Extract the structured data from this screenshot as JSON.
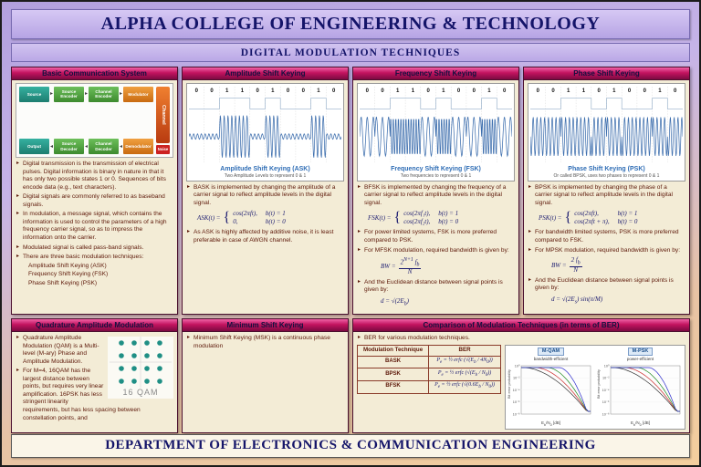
{
  "header": {
    "title": "ALPHA COLLEGE OF ENGINEERING & TECHNOLOGY",
    "subtitle": "DIGITAL MODULATION TECHNIQUES"
  },
  "footer": {
    "text": "DEPARTMENT OF ELECTRONICS & COMMUNICATION ENGINEERING"
  },
  "colors": {
    "header_lavender": "#c6b4ea",
    "panel_header_magenta": "#c2135f",
    "panel_bg_cream": "#f3ecd6",
    "body_text_maroon": "#5c1708",
    "formula_navy": "#1b1b70",
    "wave_blue": "#3e6fae",
    "constellation_teal": "#1f8f85"
  },
  "panels": {
    "basic": {
      "title": "Basic Communication System",
      "diagram": {
        "top": [
          "Source",
          "Source Encoder",
          "Channel Encoder",
          "Modulator"
        ],
        "bottom": [
          "Output",
          "Source Decoder",
          "Channel Decoder",
          "Demodulator"
        ],
        "channel": "Channel",
        "noise": "Noise"
      },
      "bullets": [
        "Digital transmission is the transmission of electrical pulses. Digital information is binary in nature in that it has only two possible states 1 or 0. Sequences of bits encode data (e.g., text characters).",
        "Digital signals are commonly referred to as baseband signals.",
        "In modulation, a message signal, which contains the information is used to control the parameters of a high frequency carrier signal, so as to impress the information onto the carrier.",
        "Modulated signal is called pass-band signals.",
        "There are three basic modulation techniques:"
      ],
      "techniques": [
        "Amplitude Shift Keying (ASK)",
        "Frequency Shift Keying (FSK)",
        "Phase Shift Keying (PSK)"
      ]
    },
    "ask": {
      "title": "Amplitude Shift Keying",
      "wave": {
        "bits": [
          0,
          0,
          1,
          1,
          0,
          1,
          0,
          0,
          1,
          0
        ],
        "type": "ask",
        "title": "Amplitude Shift Keying (ASK)",
        "subtitle": "Two Amplitude Levels to represent 0 & 1"
      },
      "bullets": [
        "BASK is implemented by changing the amplitude of a carrier signal to reflect amplitude levels in the digital signal.",
        "As ASK is highly affected by additive noise, it is least preferable in case of AWGN channel."
      ],
      "formula": {
        "lhs": "ASK(t) =",
        "c1e": "cos(2πft),",
        "c1c": "b(t) = 1",
        "c2e": "0,",
        "c2c": "b(t) = 0"
      }
    },
    "fsk": {
      "title": "Frequency Shift Keying",
      "wave": {
        "bits": [
          0,
          0,
          1,
          1,
          0,
          1,
          0,
          0,
          1,
          0
        ],
        "type": "fsk",
        "title": "Frequency Shift Keying (FSK)",
        "subtitle": "Two frequencies to represent 0 & 1"
      },
      "bullets": [
        "BFSK is implemented by changing the frequency of a carrier signal to reflect amplitude levels in the digital signal.",
        "For power limited systems, FSK is more preferred compared to PSK.",
        "For MFSK modulation, required bandwidth is given by:",
        "And the Euclidean distance between signal points is given by:"
      ],
      "formula": {
        "lhs": "FSK(t) =",
        "c1e": "cos(2πf₁t),",
        "c1c": "b(t) = 1",
        "c2e": "cos(2πf₂t),",
        "c2c": "b(t) = 0"
      },
      "bw": {
        "lhs": "BW =",
        "num": "2<sup>N+1</sup> f<sub>b</sub>",
        "den": "N"
      },
      "dist": "d = √(2E<sub>b</sub>)"
    },
    "psk": {
      "title": "Phase Shift Keying",
      "wave": {
        "bits": [
          0,
          0,
          1,
          1,
          0,
          1,
          0,
          0,
          1,
          0
        ],
        "type": "psk",
        "title": "Phase Shift Keying (PSK)",
        "subtitle": "Or called BPSK, uses two phases to represent 0 & 1"
      },
      "bullets": [
        "BPSK is implemented by changing the phase of a carrier signal to reflect amplitude levels in the digital signal.",
        "For bandwidth limited systems, PSK is more preferred compared to FSK.",
        "For MPSK modulation, required bandwidth is given by:",
        "And the Euclidean distance between signal points is given by:"
      ],
      "formula": {
        "lhs": "PSK(t) =",
        "c1e": "cos(2πft),",
        "c1c": "b(t) = 1",
        "c2e": "cos(2πft + π),",
        "c2c": "b(t) = 0"
      },
      "bw": {
        "lhs": "BW =",
        "num": "2 f<sub>b</sub>",
        "den": "N"
      },
      "dist": "d = √(2E<sub>s</sub>) sin(π/M)"
    },
    "qam": {
      "title": "Quadrature Amplitude Modulation",
      "bullets": [
        "Quadrature Amplitude Modulation (QAM) is a Multi-level (M-ary) Phase and Amplitude Modulation.",
        "For M=4, 16QAM has the largest distance between points, but requires very linear amplification. 16PSK has less stringent linearity requirements, but has less spacing between constellation points, and"
      ],
      "constellation": {
        "grid": 4,
        "color": "#1f8f85",
        "label": "16 QAM"
      }
    },
    "msk": {
      "title": "Minimum Shift Keying",
      "bullets": [
        "Minimum Shift Keying (MSK) is a continuous phase modulation"
      ]
    },
    "compare": {
      "title": "Comparison of Modulation Techniques (in terms of BER)",
      "bullet": "BER for various modulation techniques.",
      "table": {
        "col1": "Modulation Technique",
        "col2": "BER",
        "rows": [
          {
            "name": "BASK",
            "ber": "P<sub>e</sub> = ½ erfc (√(E<sub>b</sub> / 4N<sub>0</sub>))"
          },
          {
            "name": "BPSK",
            "ber": "P<sub>e</sub> = ½ erfc (√(E<sub>b</sub> / N<sub>0</sub>))"
          },
          {
            "name": "BFSK",
            "ber": "P<sub>e</sub> = ½ erfc (√(0.6E<sub>b</sub> / N<sub>0</sub>))"
          }
        ]
      },
      "plots": [
        {
          "tag": "M-QAM",
          "note": "bandwidth-efficient"
        },
        {
          "tag": "M-PSK",
          "note": "power-efficient"
        }
      ],
      "ylabel": "Bit error probability",
      "xlabel": "E<sub>b</sub>/N<sub>0</sub> [dB]"
    }
  }
}
